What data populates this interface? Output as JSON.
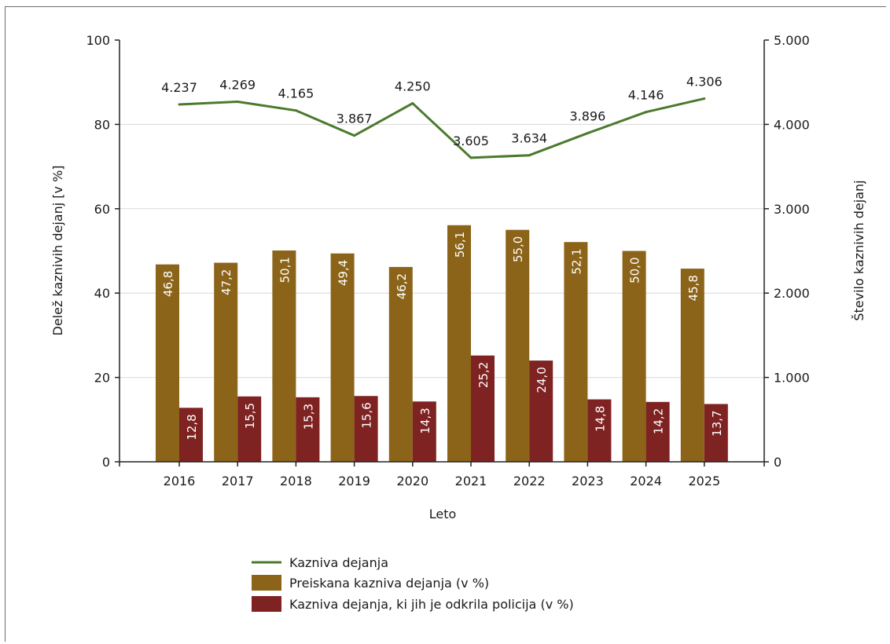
{
  "chart_data": {
    "type": "bar",
    "title": "",
    "xlabel": "Leto",
    "ylabel": "Delež kaznivih dejanj [v %]",
    "ylabel_right": "Število kaznivih dejanj",
    "categories": [
      "2016",
      "2017",
      "2018",
      "2019",
      "2020",
      "2021",
      "2022",
      "2023",
      "2024",
      "2025"
    ],
    "ylim": [
      0,
      100
    ],
    "ylim_right": [
      0,
      5000
    ],
    "yticks": [
      "0",
      "20",
      "40",
      "60",
      "80",
      "100"
    ],
    "yticks_right": [
      "0",
      "1.000",
      "2.000",
      "3.000",
      "4.000",
      "5.000"
    ],
    "grid": true,
    "legend_position": "bottom",
    "series": [
      {
        "name": "Kazniva dejanja",
        "kind": "line",
        "axis": "right",
        "color": "#4a7a2c",
        "values": [
          4237,
          4269,
          4165,
          3867,
          4250,
          3605,
          3634,
          3896,
          4146,
          4306
        ],
        "labels": [
          "4.237",
          "4.269",
          "4.165",
          "3.867",
          "4.250",
          "3.605",
          "3.634",
          "3.896",
          "4.146",
          "4.306"
        ]
      },
      {
        "name": "Preiskana kazniva dejanja (v %)",
        "kind": "bar",
        "axis": "left",
        "color": "#8b6419",
        "values": [
          46.8,
          47.2,
          50.1,
          49.4,
          46.2,
          56.1,
          55.0,
          52.1,
          50.0,
          45.8
        ],
        "labels": [
          "46,8",
          "47,2",
          "50,1",
          "49,4",
          "46,2",
          "56,1",
          "55,0",
          "52,1",
          "50,0",
          "45,8"
        ]
      },
      {
        "name": "Kazniva dejanja, ki jih je odkrila policija (v %)",
        "kind": "bar",
        "axis": "left",
        "color": "#7e2222",
        "values": [
          12.8,
          15.5,
          15.3,
          15.6,
          14.3,
          25.2,
          24.0,
          14.8,
          14.2,
          13.7
        ],
        "labels": [
          "12,8",
          "15,5",
          "15,3",
          "15,6",
          "14,3",
          "25,2",
          "24,0",
          "14,8",
          "14,2",
          "13,7"
        ]
      }
    ]
  }
}
